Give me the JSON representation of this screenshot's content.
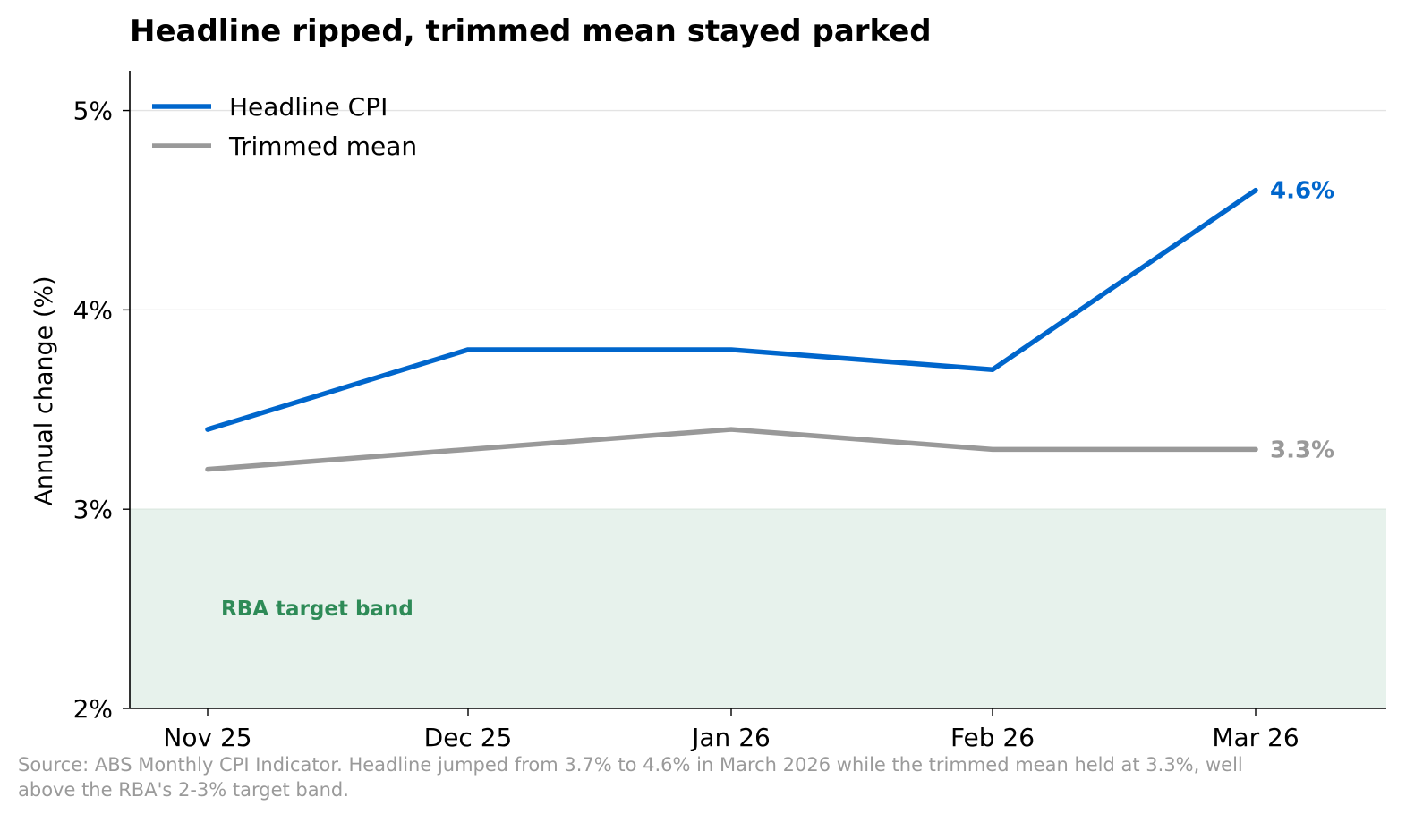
{
  "chart_data": {
    "type": "line",
    "title": "Headline ripped, trimmed mean stayed parked",
    "xlabel": "",
    "ylabel": "Annual change (%)",
    "categories": [
      "Nov 25",
      "Dec 25",
      "Jan 26",
      "Feb 26",
      "Mar 26"
    ],
    "ylim": [
      2,
      5.2
    ],
    "yticks": [
      2,
      3,
      4,
      5
    ],
    "ytick_labels": [
      "2%",
      "3%",
      "4%",
      "5%"
    ],
    "grid": "horizontal",
    "legend_position": "top-left",
    "series": [
      {
        "name": "Headline CPI",
        "values": [
          3.4,
          3.8,
          3.8,
          3.7,
          4.6
        ],
        "color": "#0066cc",
        "end_label": "4.6%"
      },
      {
        "name": "Trimmed mean",
        "values": [
          3.2,
          3.3,
          3.4,
          3.3,
          3.3
        ],
        "color": "#999999",
        "end_label": "3.3%"
      }
    ],
    "band": {
      "from": 2,
      "to": 3,
      "label": "RBA target band",
      "fill": "#e7f2ec",
      "label_color": "#2e8b57"
    },
    "source": "Source: ABS Monthly CPI Indicator. Headline jumped from 3.7% to 4.6% in March 2026 while the trimmed mean held at 3.3%, well above the RBA's 2-3% target band."
  }
}
